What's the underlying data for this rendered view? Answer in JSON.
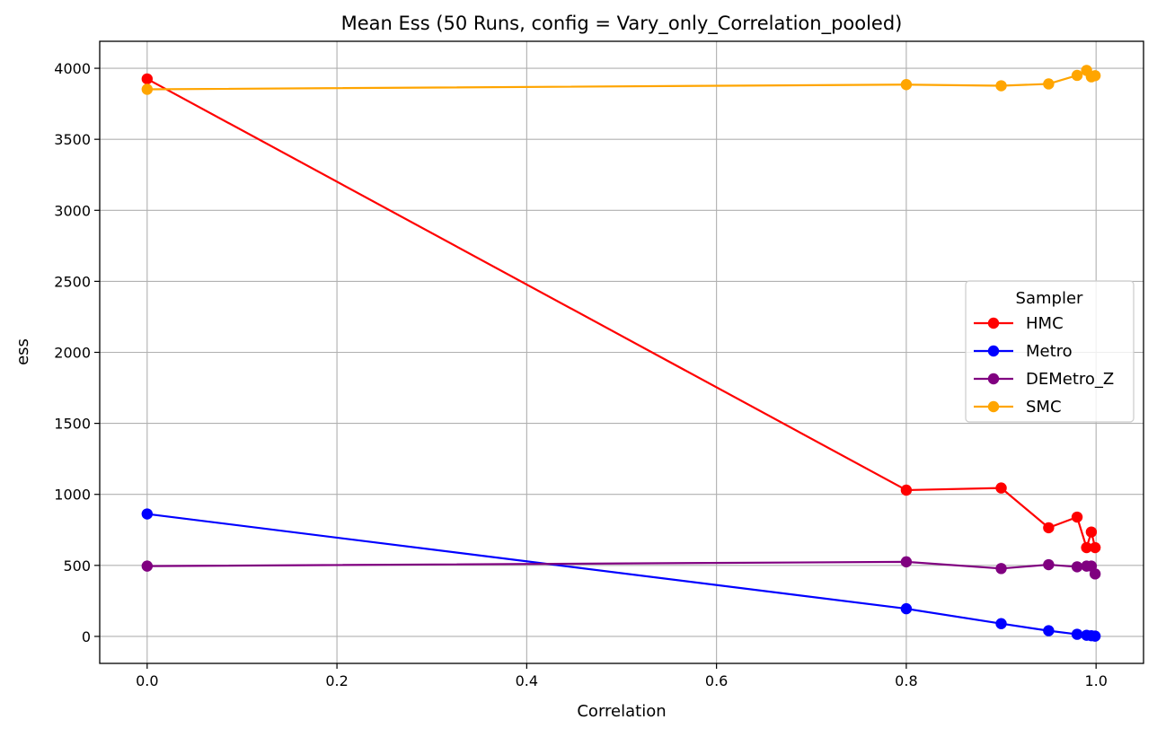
{
  "chart_data": {
    "type": "line",
    "title": "Mean Ess (50 Runs, config = Vary_only_Correlation_pooled)",
    "xlabel": "Correlation",
    "ylabel": "ess",
    "xlim": [
      -0.05,
      1.05
    ],
    "ylim": [
      -190,
      4190
    ],
    "xticks": [
      0.0,
      0.2,
      0.4,
      0.6,
      0.8,
      1.0
    ],
    "xtick_labels": [
      "0.0",
      "0.2",
      "0.4",
      "0.6",
      "0.8",
      "1.0"
    ],
    "yticks": [
      0,
      500,
      1000,
      1500,
      2000,
      2500,
      3000,
      3500,
      4000
    ],
    "ytick_labels": [
      "0",
      "500",
      "1000",
      "1500",
      "2000",
      "2500",
      "3000",
      "3500",
      "4000"
    ],
    "grid": true,
    "legend": {
      "title": "Sampler",
      "position": "center-right"
    },
    "x": [
      0.0,
      0.8,
      0.9,
      0.95,
      0.98,
      0.99,
      0.995,
      0.999
    ],
    "series": [
      {
        "name": "HMC",
        "color": "#ff0000",
        "values": [
          3925,
          1030,
          1045,
          765,
          840,
          625,
          735,
          625
        ]
      },
      {
        "name": "Metro",
        "color": "#0000ff",
        "values": [
          862,
          195,
          90,
          40,
          15,
          8,
          5,
          2
        ]
      },
      {
        "name": "DEMetro_Z",
        "color": "#800080",
        "values": [
          495,
          525,
          478,
          505,
          490,
          495,
          495,
          440
        ]
      },
      {
        "name": "SMC",
        "color": "#ffa500",
        "values": [
          3852,
          3885,
          3877,
          3890,
          3950,
          3985,
          3940,
          3948
        ]
      }
    ]
  }
}
